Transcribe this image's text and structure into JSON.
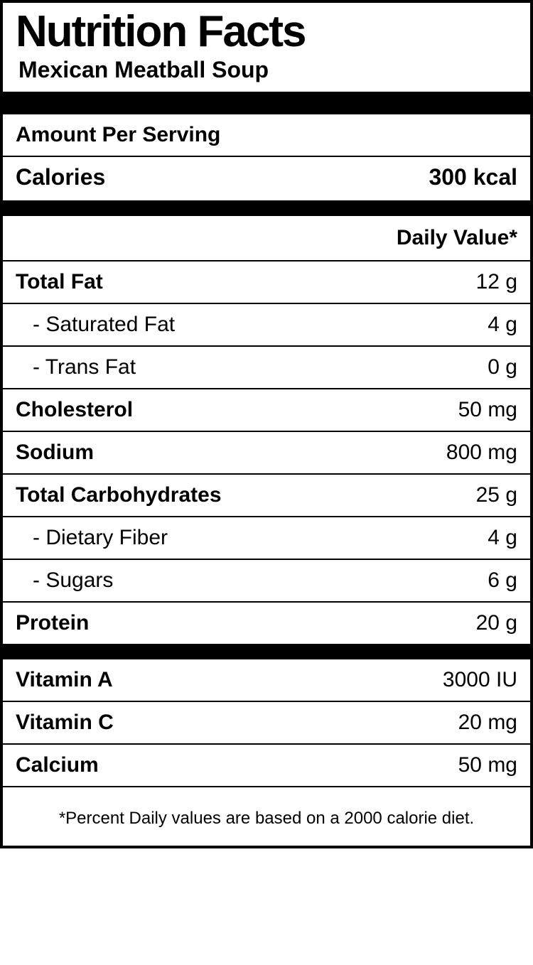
{
  "title": "Nutrition Facts",
  "product_name": "Mexican Meatball Soup",
  "amount_per_serving_label": "Amount Per Serving",
  "calories_label": "Calories",
  "calories_value": "300 kcal",
  "daily_value_label": "Daily Value*",
  "nutrients": {
    "total_fat": {
      "label": "Total Fat",
      "value": "12 g"
    },
    "saturated_fat": {
      "label": "- Saturated Fat",
      "value": "4 g"
    },
    "trans_fat": {
      "label": "- Trans Fat",
      "value": "0 g"
    },
    "cholesterol": {
      "label": "Cholesterol",
      "value": "50 mg"
    },
    "sodium": {
      "label": "Sodium",
      "value": "800 mg"
    },
    "total_carbs": {
      "label": "Total Carbohydrates",
      "value": "25 g"
    },
    "dietary_fiber": {
      "label": "- Dietary Fiber",
      "value": "4 g"
    },
    "sugars": {
      "label": "- Sugars",
      "value": "6 g"
    },
    "protein": {
      "label": "Protein",
      "value": "20 g"
    }
  },
  "vitamins": {
    "vitamin_a": {
      "label": "Vitamin A",
      "value": "3000 IU"
    },
    "vitamin_c": {
      "label": "Vitamin C",
      "value": "20 mg"
    },
    "calcium": {
      "label": "Calcium",
      "value": "50 mg"
    }
  },
  "footnote": "*Percent Daily values are based on a 2000 calorie diet."
}
